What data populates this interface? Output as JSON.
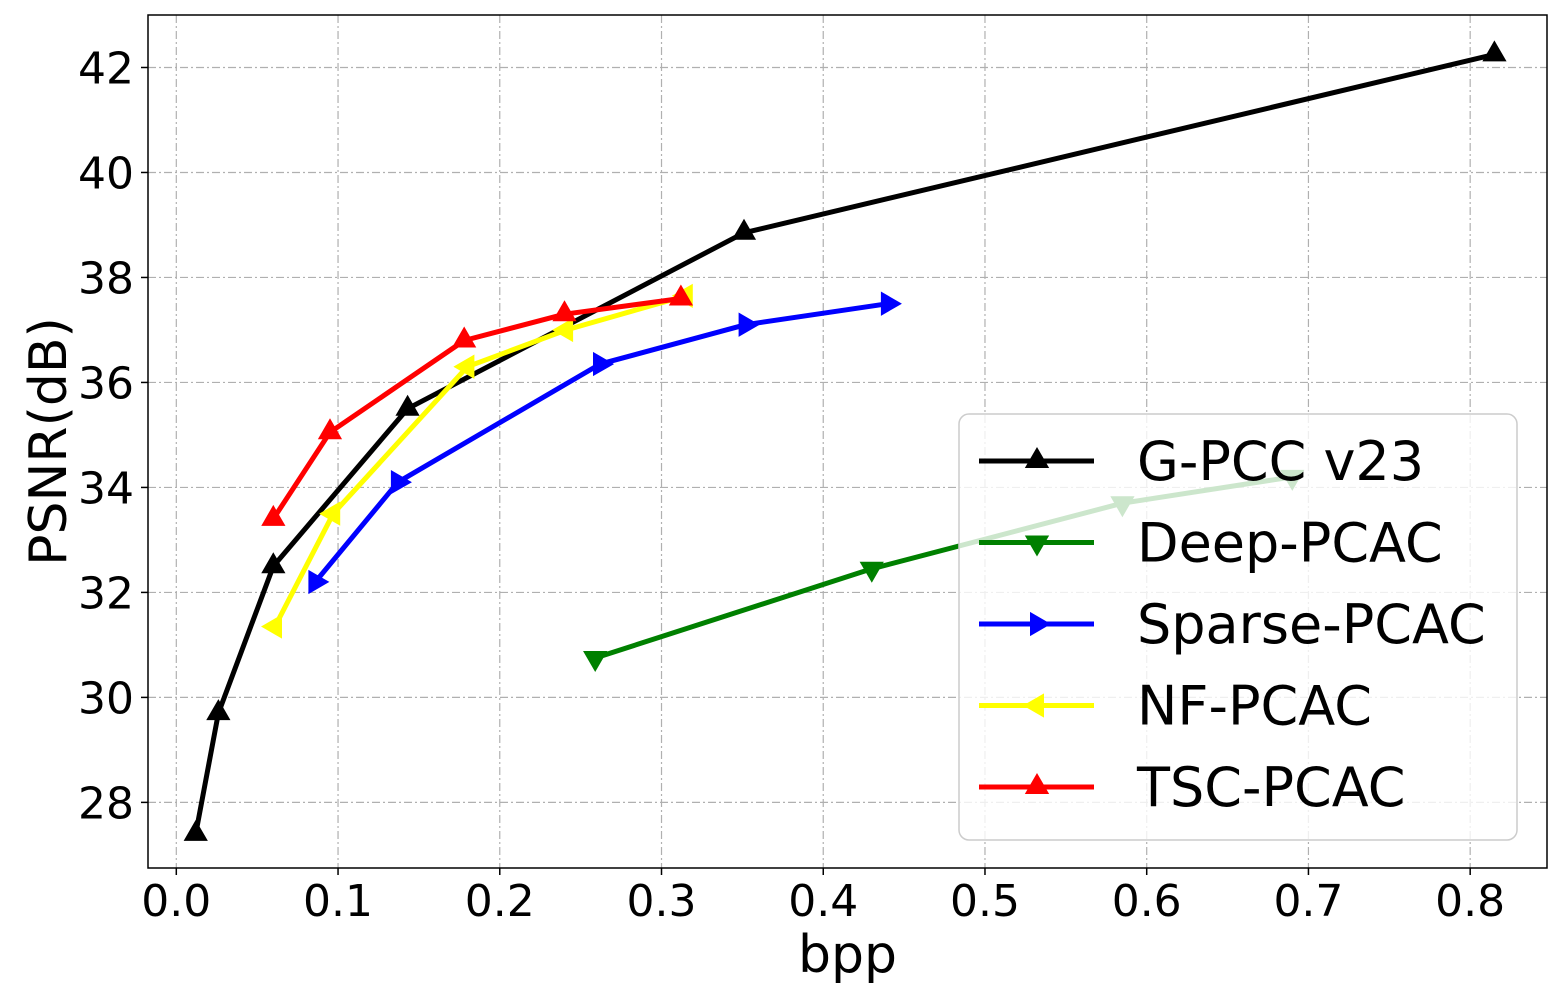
{
  "chart_data": {
    "type": "line",
    "title": "",
    "xlabel": "bpp",
    "ylabel": "PSNR(dB)",
    "xlim": [
      -0.0175,
      0.8475
    ],
    "ylim": [
      26.75,
      43.0
    ],
    "xticks": [
      0.0,
      0.1,
      0.2,
      0.3,
      0.4,
      0.5,
      0.6,
      0.7,
      0.8
    ],
    "xtick_labels": [
      "0.0",
      "0.1",
      "0.2",
      "0.3",
      "0.4",
      "0.5",
      "0.6",
      "0.7",
      "0.8"
    ],
    "yticks": [
      28,
      30,
      32,
      34,
      36,
      38,
      40,
      42
    ],
    "ytick_labels": [
      "28",
      "30",
      "32",
      "34",
      "36",
      "38",
      "40",
      "42"
    ],
    "grid": true,
    "legend_position": "lower-right",
    "series": [
      {
        "name": "G-PCC v23",
        "color": "#000000",
        "marker": "triangle-up",
        "x": [
          0.012,
          0.026,
          0.06,
          0.143,
          0.351,
          0.815
        ],
        "y": [
          27.4,
          29.7,
          32.5,
          35.5,
          38.85,
          42.25
        ]
      },
      {
        "name": "Deep-PCAC",
        "color": "#008000",
        "marker": "triangle-down",
        "x": [
          0.259,
          0.43,
          0.585,
          0.69
        ],
        "y": [
          30.75,
          32.45,
          33.7,
          34.2
        ]
      },
      {
        "name": "Sparse-PCAC",
        "color": "#0000ff",
        "marker": "triangle-right",
        "x": [
          0.086,
          0.137,
          0.262,
          0.352,
          0.44
        ],
        "y": [
          32.2,
          34.1,
          36.35,
          37.1,
          37.5
        ]
      },
      {
        "name": "NF-PCAC",
        "color": "#ffff00",
        "marker": "triangle-left",
        "x": [
          0.061,
          0.097,
          0.18,
          0.241,
          0.315
        ],
        "y": [
          31.35,
          33.5,
          36.3,
          37.0,
          37.65
        ]
      },
      {
        "name": "TSC-PCAC",
        "color": "#ff0000",
        "marker": "triangle-up",
        "x": [
          0.06,
          0.095,
          0.178,
          0.24,
          0.312
        ],
        "y": [
          33.4,
          35.05,
          36.8,
          37.3,
          37.6
        ]
      }
    ]
  }
}
